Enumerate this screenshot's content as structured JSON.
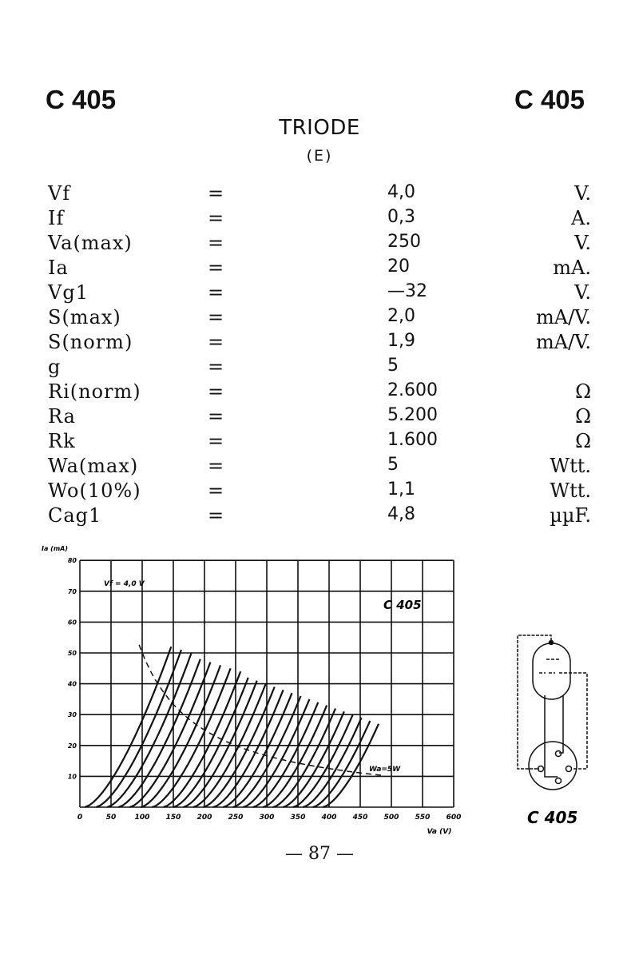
{
  "header": {
    "code_left": "C 405",
    "code_right": "C 405",
    "title": "TRIODE",
    "subtitle": "(E)"
  },
  "specs": [
    {
      "label": "Vf",
      "eq": "=",
      "value": "4,0",
      "unit": "V."
    },
    {
      "label": "If",
      "eq": "=",
      "value": "0,3",
      "unit": "A."
    },
    {
      "label": "Va(max)",
      "eq": "=",
      "value": "250",
      "unit": "V."
    },
    {
      "label": "Ia",
      "eq": "=",
      "value": "20",
      "unit": "mA."
    },
    {
      "label": "Vg1",
      "eq": "=",
      "value": "—32",
      "unit": "V."
    },
    {
      "label": "S(max)",
      "eq": "=",
      "value": "2,0",
      "unit": "mA/V."
    },
    {
      "label": "S(norm)",
      "eq": "=",
      "value": "1,9",
      "unit": "mA/V."
    },
    {
      "label": "g",
      "eq": "=",
      "value": "5",
      "unit": ""
    },
    {
      "label": "Ri(norm)",
      "eq": "=",
      "value": "2.600",
      "unit": "Ω"
    },
    {
      "label": "Ra",
      "eq": "=",
      "value": "5.200",
      "unit": "Ω"
    },
    {
      "label": "Rk",
      "eq": "=",
      "value": "1.600",
      "unit": "Ω"
    },
    {
      "label": "Wa(max)",
      "eq": "=",
      "value": "5",
      "unit": "Wtt."
    },
    {
      "label": "Wo(10%)",
      "eq": "=",
      "value": "1,1",
      "unit": "Wtt."
    },
    {
      "label": "Cag1",
      "eq": "=",
      "value": "4,8",
      "unit": "µµF."
    }
  ],
  "chart_data": {
    "type": "line",
    "title": "C 405",
    "ylabel": "Ia (mA)",
    "xlabel": "Va (V)",
    "annotation": "Vf = 4,0 V",
    "dissipation_label": "Wa=5W",
    "dissipation_watts": 5,
    "xlim": [
      0,
      600
    ],
    "ylim": [
      0,
      80
    ],
    "xticks": [
      "0",
      "50",
      "100",
      "150",
      "200",
      "250",
      "300",
      "350",
      "400",
      "450",
      "500",
      "550",
      "600"
    ],
    "yticks": [
      "10",
      "20",
      "30",
      "40",
      "50",
      "60",
      "70",
      "80"
    ],
    "grid": true,
    "series": [
      {
        "start_va": 8,
        "end_ia": 52
      },
      {
        "start_va": 26,
        "end_ia": 51
      },
      {
        "start_va": 44,
        "end_ia": 50
      },
      {
        "start_va": 62,
        "end_ia": 48
      },
      {
        "start_va": 80,
        "end_ia": 47
      },
      {
        "start_va": 98,
        "end_ia": 46
      },
      {
        "start_va": 116,
        "end_ia": 45
      },
      {
        "start_va": 134,
        "end_ia": 44
      },
      {
        "start_va": 150,
        "end_ia": 42
      },
      {
        "start_va": 166,
        "end_ia": 41
      },
      {
        "start_va": 182,
        "end_ia": 40
      },
      {
        "start_va": 198,
        "end_ia": 39
      },
      {
        "start_va": 214,
        "end_ia": 38
      },
      {
        "start_va": 230,
        "end_ia": 37
      },
      {
        "start_va": 246,
        "end_ia": 36
      },
      {
        "start_va": 262,
        "end_ia": 35
      },
      {
        "start_va": 278,
        "end_ia": 34
      },
      {
        "start_va": 294,
        "end_ia": 33
      },
      {
        "start_va": 310,
        "end_ia": 32
      },
      {
        "start_va": 326,
        "end_ia": 31
      },
      {
        "start_va": 342,
        "end_ia": 30
      },
      {
        "start_va": 358,
        "end_ia": 29
      },
      {
        "start_va": 374,
        "end_ia": 28
      },
      {
        "start_va": 390,
        "end_ia": 27
      }
    ]
  },
  "diagram": {
    "label": "C 405"
  },
  "footer": {
    "page": "— 87 —"
  }
}
